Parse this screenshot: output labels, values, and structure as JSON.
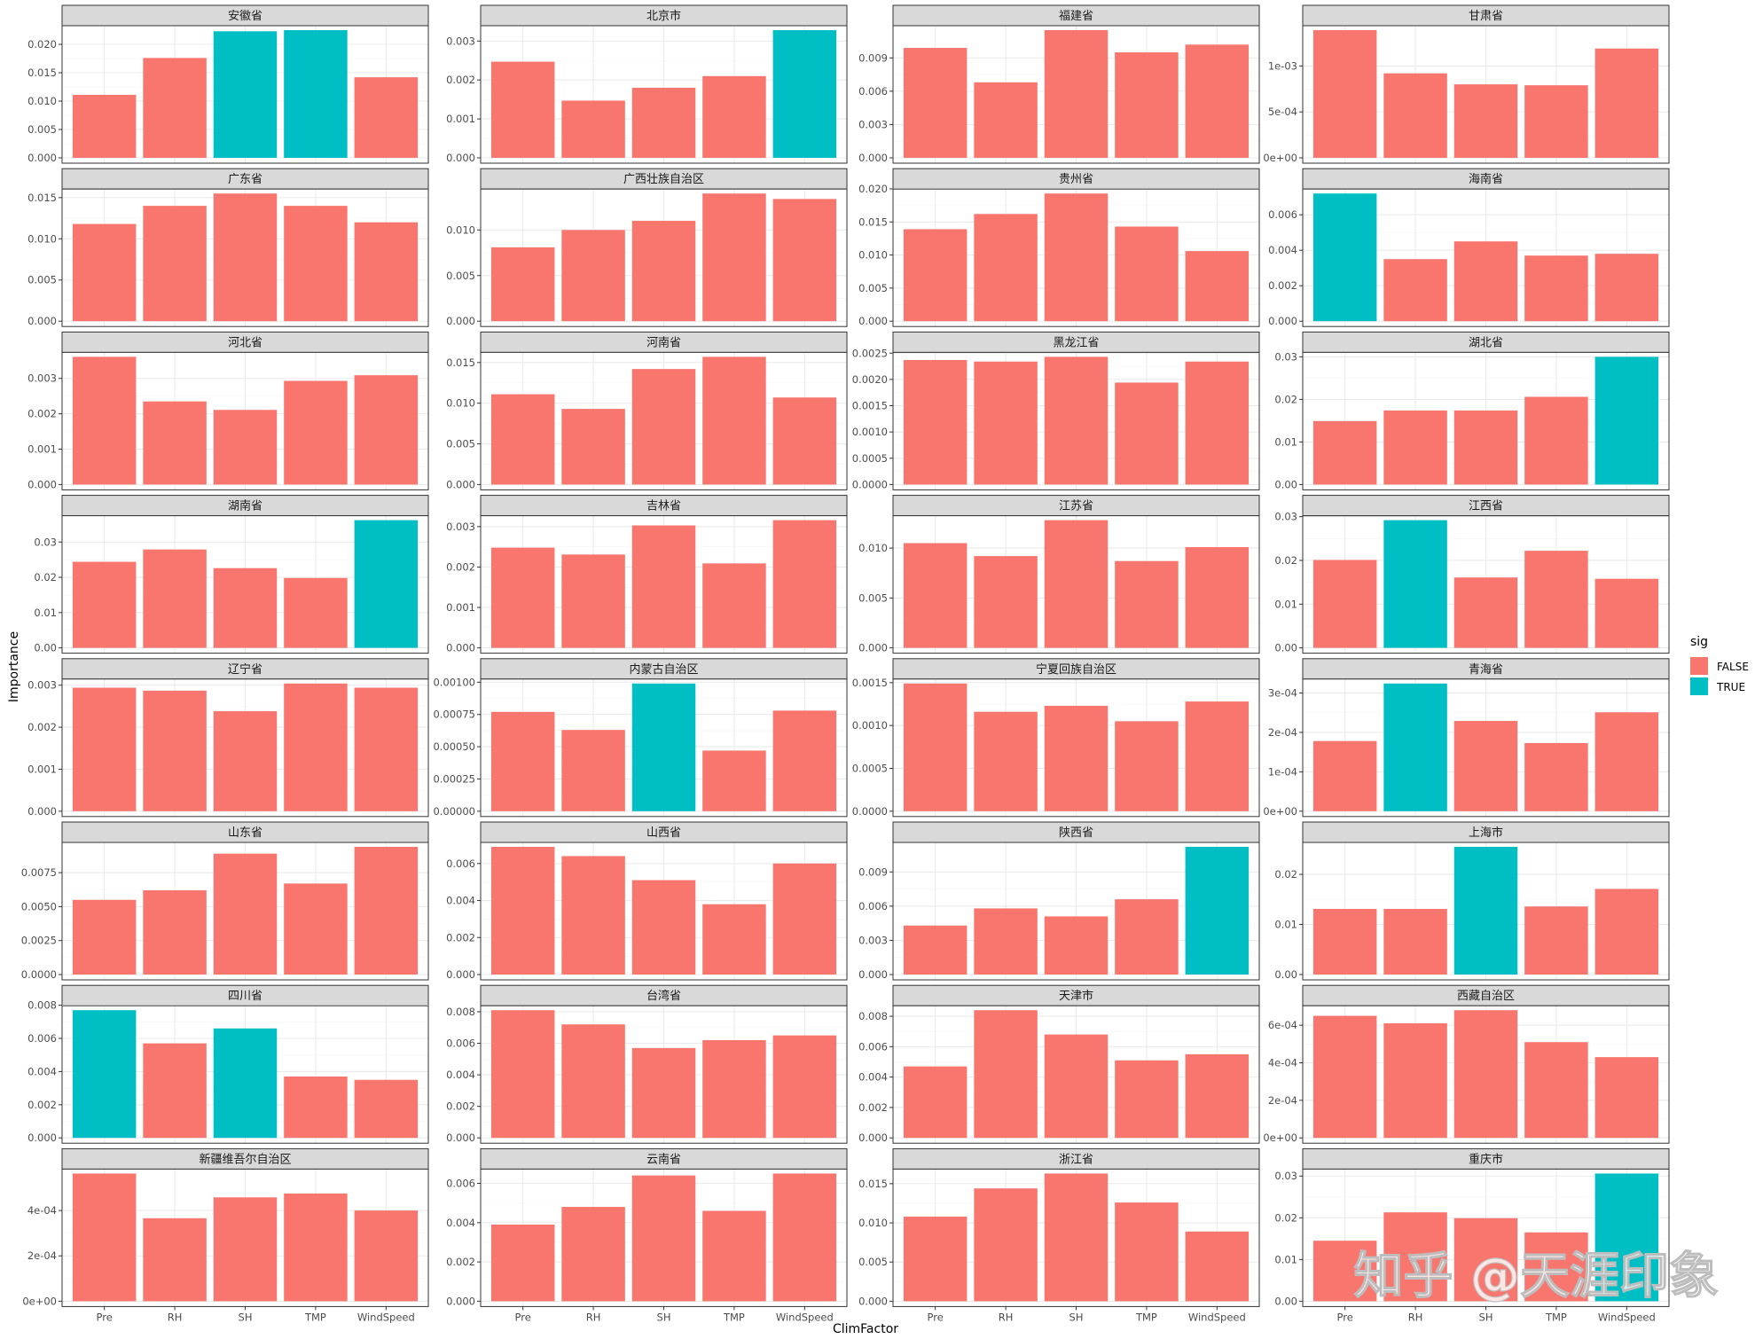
{
  "colors": {
    "false": "#F8766D",
    "true": "#00BFC4",
    "strip_fill": "#D9D9D9",
    "strip_border": "#333333",
    "panel_border": "#333333",
    "grid_major": "#EBEBEB",
    "grid_minor": "#F5F5F5"
  },
  "watermark": "知乎 @天涯印象",
  "chart_data": {
    "type": "bar",
    "layout": "faceted 8x4 grid, free y scales",
    "categories": [
      "Pre",
      "RH",
      "SH",
      "TMP",
      "WindSpeed"
    ],
    "xlabel": "ClimFactor",
    "ylabel": "Importance",
    "legend": {
      "title": "sig",
      "position": "right",
      "items": [
        "FALSE",
        "TRUE"
      ]
    },
    "grid": true,
    "facets": [
      {
        "name": "安徽省",
        "values": [
          0.0111,
          0.0176,
          0.0223,
          0.0225,
          0.0142
        ],
        "sig": [
          false,
          false,
          true,
          true,
          false
        ],
        "ylim": [
          0,
          0.0225
        ],
        "ticks": [
          0,
          0.005,
          0.01,
          0.015,
          0.02
        ],
        "tick_labels": [
          "0.000",
          "0.005",
          "0.010",
          "0.015",
          "0.020"
        ]
      },
      {
        "name": "北京市",
        "values": [
          0.00247,
          0.00147,
          0.0018,
          0.0021,
          0.00328
        ],
        "sig": [
          false,
          false,
          false,
          false,
          true
        ],
        "ylim": [
          0,
          0.00328
        ],
        "ticks": [
          0,
          0.001,
          0.002,
          0.003
        ],
        "tick_labels": [
          "0.000",
          "0.001",
          "0.002",
          "0.003"
        ]
      },
      {
        "name": "福建省",
        "values": [
          0.0099,
          0.0068,
          0.0115,
          0.0095,
          0.0102
        ],
        "sig": [
          false,
          false,
          false,
          false,
          false
        ],
        "ylim": [
          0,
          0.0115
        ],
        "ticks": [
          0,
          0.003,
          0.006,
          0.009
        ],
        "tick_labels": [
          "0.000",
          "0.003",
          "0.006",
          "0.009"
        ]
      },
      {
        "name": "甘肃省",
        "values": [
          0.00139,
          0.00092,
          0.0008,
          0.00079,
          0.00119
        ],
        "sig": [
          false,
          false,
          false,
          false,
          false
        ],
        "ylim": [
          0,
          0.00139
        ],
        "ticks": [
          0,
          0.0005,
          0.001
        ],
        "tick_labels": [
          "0e+00",
          "5e-04",
          "1e-03"
        ]
      },
      {
        "name": "广东省",
        "values": [
          0.0118,
          0.014,
          0.0155,
          0.014,
          0.012
        ],
        "sig": [
          false,
          false,
          false,
          false,
          false
        ],
        "ylim": [
          0,
          0.0155
        ],
        "ticks": [
          0,
          0.005,
          0.01,
          0.015
        ],
        "tick_labels": [
          "0.000",
          "0.005",
          "0.010",
          "0.015"
        ]
      },
      {
        "name": "广西壮族自治区",
        "values": [
          0.0081,
          0.01,
          0.011,
          0.014,
          0.0134
        ],
        "sig": [
          false,
          false,
          false,
          false,
          false
        ],
        "ylim": [
          0,
          0.014
        ],
        "ticks": [
          0,
          0.005,
          0.01
        ],
        "tick_labels": [
          "0.000",
          "0.005",
          "0.010"
        ]
      },
      {
        "name": "贵州省",
        "values": [
          0.0139,
          0.0162,
          0.0193,
          0.0143,
          0.0106
        ],
        "sig": [
          false,
          false,
          false,
          false,
          false
        ],
        "ylim": [
          0,
          0.0193
        ],
        "ticks": [
          0,
          0.005,
          0.01,
          0.015,
          0.02
        ],
        "tick_labels": [
          "0.000",
          "0.005",
          "0.010",
          "0.015",
          "0.020"
        ]
      },
      {
        "name": "海南省",
        "values": [
          0.0072,
          0.0035,
          0.0045,
          0.0037,
          0.0038
        ],
        "sig": [
          true,
          false,
          false,
          false,
          false
        ],
        "ylim": [
          0,
          0.0072
        ],
        "ticks": [
          0,
          0.002,
          0.004,
          0.006
        ],
        "tick_labels": [
          "0.000",
          "0.002",
          "0.004",
          "0.006"
        ]
      },
      {
        "name": "河北省",
        "values": [
          0.00361,
          0.00235,
          0.00211,
          0.00293,
          0.00309
        ],
        "sig": [
          false,
          false,
          false,
          false,
          false
        ],
        "ylim": [
          0,
          0.00361
        ],
        "ticks": [
          0,
          0.001,
          0.002,
          0.003
        ],
        "tick_labels": [
          "0.000",
          "0.001",
          "0.002",
          "0.003"
        ]
      },
      {
        "name": "河南省",
        "values": [
          0.0111,
          0.0093,
          0.0142,
          0.0157,
          0.0107
        ],
        "sig": [
          false,
          false,
          false,
          false,
          false
        ],
        "ylim": [
          0,
          0.0157
        ],
        "ticks": [
          0,
          0.005,
          0.01,
          0.015
        ],
        "tick_labels": [
          "0.000",
          "0.005",
          "0.010",
          "0.015"
        ]
      },
      {
        "name": "黑龙江省",
        "values": [
          0.00237,
          0.00234,
          0.00243,
          0.00194,
          0.00234
        ],
        "sig": [
          false,
          false,
          false,
          false,
          false
        ],
        "ylim": [
          0,
          0.00243
        ],
        "ticks": [
          0,
          0.0005,
          0.001,
          0.0015,
          0.002,
          0.0025
        ],
        "tick_labels": [
          "0.0000",
          "0.0005",
          "0.0010",
          "0.0015",
          "0.0020",
          "0.0025"
        ]
      },
      {
        "name": "湖北省",
        "values": [
          0.0149,
          0.0174,
          0.0174,
          0.0206,
          0.03
        ],
        "sig": [
          false,
          false,
          false,
          false,
          true
        ],
        "ylim": [
          0,
          0.03
        ],
        "ticks": [
          0,
          0.01,
          0.02,
          0.03
        ],
        "tick_labels": [
          "0.00",
          "0.01",
          "0.02",
          "0.03"
        ]
      },
      {
        "name": "湖南省",
        "values": [
          0.0244,
          0.0279,
          0.0226,
          0.0198,
          0.0362
        ],
        "sig": [
          false,
          false,
          false,
          false,
          true
        ],
        "ylim": [
          0,
          0.0362
        ],
        "ticks": [
          0,
          0.01,
          0.02,
          0.03
        ],
        "tick_labels": [
          "0.00",
          "0.01",
          "0.02",
          "0.03"
        ]
      },
      {
        "name": "吉林省",
        "values": [
          0.00248,
          0.00231,
          0.00303,
          0.00209,
          0.00316
        ],
        "sig": [
          false,
          false,
          false,
          false,
          false
        ],
        "ylim": [
          0,
          0.00316
        ],
        "ticks": [
          0,
          0.001,
          0.002,
          0.003
        ],
        "tick_labels": [
          "0.000",
          "0.001",
          "0.002",
          "0.003"
        ]
      },
      {
        "name": "江苏省",
        "values": [
          0.0105,
          0.0092,
          0.0128,
          0.0087,
          0.0101
        ],
        "sig": [
          false,
          false,
          false,
          false,
          false
        ],
        "ylim": [
          0,
          0.0128
        ],
        "ticks": [
          0,
          0.005,
          0.01
        ],
        "tick_labels": [
          "0.000",
          "0.005",
          "0.010"
        ]
      },
      {
        "name": "江西省",
        "values": [
          0.0201,
          0.0292,
          0.0161,
          0.0222,
          0.0158
        ],
        "sig": [
          false,
          true,
          false,
          false,
          false
        ],
        "ylim": [
          0,
          0.0292
        ],
        "ticks": [
          0,
          0.01,
          0.02,
          0.03
        ],
        "tick_labels": [
          "0.00",
          "0.01",
          "0.02",
          "0.03"
        ]
      },
      {
        "name": "辽宁省",
        "values": [
          0.00294,
          0.00287,
          0.00238,
          0.00304,
          0.00294
        ],
        "sig": [
          false,
          false,
          false,
          false,
          false
        ],
        "ylim": [
          0,
          0.00304
        ],
        "ticks": [
          0,
          0.001,
          0.002,
          0.003
        ],
        "tick_labels": [
          "0.000",
          "0.001",
          "0.002",
          "0.003"
        ]
      },
      {
        "name": "内蒙古自治区",
        "values": [
          0.00077,
          0.00063,
          0.00099,
          0.00047,
          0.00078
        ],
        "sig": [
          false,
          false,
          true,
          false,
          false
        ],
        "ylim": [
          0,
          0.00099
        ],
        "ticks": [
          0,
          0.00025,
          0.0005,
          0.00075,
          0.001
        ],
        "tick_labels": [
          "0.00000",
          "0.00025",
          "0.00050",
          "0.00075",
          "0.00100"
        ]
      },
      {
        "name": "宁夏回族自治区",
        "values": [
          0.00149,
          0.00116,
          0.00123,
          0.00105,
          0.00128
        ],
        "sig": [
          false,
          false,
          false,
          false,
          false
        ],
        "ylim": [
          0,
          0.00149
        ],
        "ticks": [
          0,
          0.0005,
          0.001,
          0.0015
        ],
        "tick_labels": [
          "0.0000",
          "0.0005",
          "0.0010",
          "0.0015"
        ]
      },
      {
        "name": "青海省",
        "values": [
          0.000178,
          0.000324,
          0.000229,
          0.000173,
          0.000251
        ],
        "sig": [
          false,
          true,
          false,
          false,
          false
        ],
        "ylim": [
          0,
          0.000324
        ],
        "ticks": [
          0,
          0.0001,
          0.0002,
          0.0003
        ],
        "tick_labels": [
          "0e+00",
          "1e-04",
          "2e-04",
          "3e-04"
        ]
      },
      {
        "name": "山东省",
        "values": [
          0.0055,
          0.0062,
          0.0089,
          0.0067,
          0.0094
        ],
        "sig": [
          false,
          false,
          false,
          false,
          false
        ],
        "ylim": [
          0,
          0.0094
        ],
        "ticks": [
          0,
          0.0025,
          0.005,
          0.0075
        ],
        "tick_labels": [
          "0.0000",
          "0.0025",
          "0.0050",
          "0.0075"
        ]
      },
      {
        "name": "山西省",
        "values": [
          0.0069,
          0.0064,
          0.0051,
          0.0038,
          0.006
        ],
        "sig": [
          false,
          false,
          false,
          false,
          false
        ],
        "ylim": [
          0,
          0.0069
        ],
        "ticks": [
          0,
          0.002,
          0.004,
          0.006
        ],
        "tick_labels": [
          "0.000",
          "0.002",
          "0.004",
          "0.006"
        ]
      },
      {
        "name": "陕西省",
        "values": [
          0.0043,
          0.0058,
          0.0051,
          0.0066,
          0.0112
        ],
        "sig": [
          false,
          false,
          false,
          false,
          true
        ],
        "ylim": [
          0,
          0.0112
        ],
        "ticks": [
          0,
          0.003,
          0.006,
          0.009
        ],
        "tick_labels": [
          "0.000",
          "0.003",
          "0.006",
          "0.009"
        ]
      },
      {
        "name": "上海市",
        "values": [
          0.0131,
          0.0131,
          0.0255,
          0.0136,
          0.0171
        ],
        "sig": [
          false,
          false,
          true,
          false,
          false
        ],
        "ylim": [
          0,
          0.0255
        ],
        "ticks": [
          0,
          0.01,
          0.02
        ],
        "tick_labels": [
          "0.00",
          "0.01",
          "0.02"
        ]
      },
      {
        "name": "四川省",
        "values": [
          0.0077,
          0.0057,
          0.0066,
          0.0037,
          0.0035
        ],
        "sig": [
          true,
          false,
          true,
          false,
          false
        ],
        "ylim": [
          0,
          0.0077
        ],
        "ticks": [
          0,
          0.002,
          0.004,
          0.006,
          0.008
        ],
        "tick_labels": [
          "0.000",
          "0.002",
          "0.004",
          "0.006",
          "0.008"
        ]
      },
      {
        "name": "台湾省",
        "values": [
          0.0081,
          0.0072,
          0.0057,
          0.0062,
          0.0065
        ],
        "sig": [
          false,
          false,
          false,
          false,
          false
        ],
        "ylim": [
          0,
          0.0081
        ],
        "ticks": [
          0,
          0.002,
          0.004,
          0.006,
          0.008
        ],
        "tick_labels": [
          "0.000",
          "0.002",
          "0.004",
          "0.006",
          "0.008"
        ]
      },
      {
        "name": "天津市",
        "values": [
          0.0047,
          0.0084,
          0.0068,
          0.0051,
          0.0055
        ],
        "sig": [
          false,
          false,
          false,
          false,
          false
        ],
        "ylim": [
          0,
          0.0084
        ],
        "ticks": [
          0,
          0.002,
          0.004,
          0.006,
          0.008
        ],
        "tick_labels": [
          "0.000",
          "0.002",
          "0.004",
          "0.006",
          "0.008"
        ]
      },
      {
        "name": "西藏自治区",
        "values": [
          0.00065,
          0.00061,
          0.00068,
          0.00051,
          0.00043
        ],
        "sig": [
          false,
          false,
          false,
          false,
          false
        ],
        "ylim": [
          0,
          0.00068
        ],
        "ticks": [
          0,
          0.0002,
          0.0004,
          0.0006
        ],
        "tick_labels": [
          "0e+00",
          "2e-04",
          "4e-04",
          "6e-04"
        ]
      },
      {
        "name": "新疆维吾尔自治区",
        "values": [
          0.000563,
          0.000366,
          0.000458,
          0.000475,
          0.0004
        ],
        "sig": [
          false,
          false,
          false,
          false,
          false
        ],
        "ylim": [
          0,
          0.000563
        ],
        "ticks": [
          0,
          0.0002,
          0.0004
        ],
        "tick_labels": [
          "0e+00",
          "2e-04",
          "4e-04"
        ]
      },
      {
        "name": "云南省",
        "values": [
          0.0039,
          0.0048,
          0.0064,
          0.0046,
          0.0065
        ],
        "sig": [
          false,
          false,
          false,
          false,
          false
        ],
        "ylim": [
          0,
          0.0065
        ],
        "ticks": [
          0,
          0.002,
          0.004,
          0.006
        ],
        "tick_labels": [
          "0.000",
          "0.002",
          "0.004",
          "0.006"
        ]
      },
      {
        "name": "浙江省",
        "values": [
          0.0108,
          0.0144,
          0.0163,
          0.0126,
          0.0089
        ],
        "sig": [
          false,
          false,
          false,
          false,
          false
        ],
        "ylim": [
          0,
          0.0163
        ],
        "ticks": [
          0,
          0.005,
          0.01,
          0.015
        ],
        "tick_labels": [
          "0.000",
          "0.005",
          "0.010",
          "0.015"
        ]
      },
      {
        "name": "重庆市",
        "values": [
          0.0145,
          0.0213,
          0.0199,
          0.0165,
          0.0306
        ],
        "sig": [
          false,
          false,
          false,
          false,
          true
        ],
        "ylim": [
          0,
          0.0306
        ],
        "ticks": [
          0,
          0.01,
          0.02,
          0.03
        ],
        "tick_labels": [
          "0.00",
          "0.01",
          "0.02",
          "0.03"
        ]
      }
    ]
  }
}
